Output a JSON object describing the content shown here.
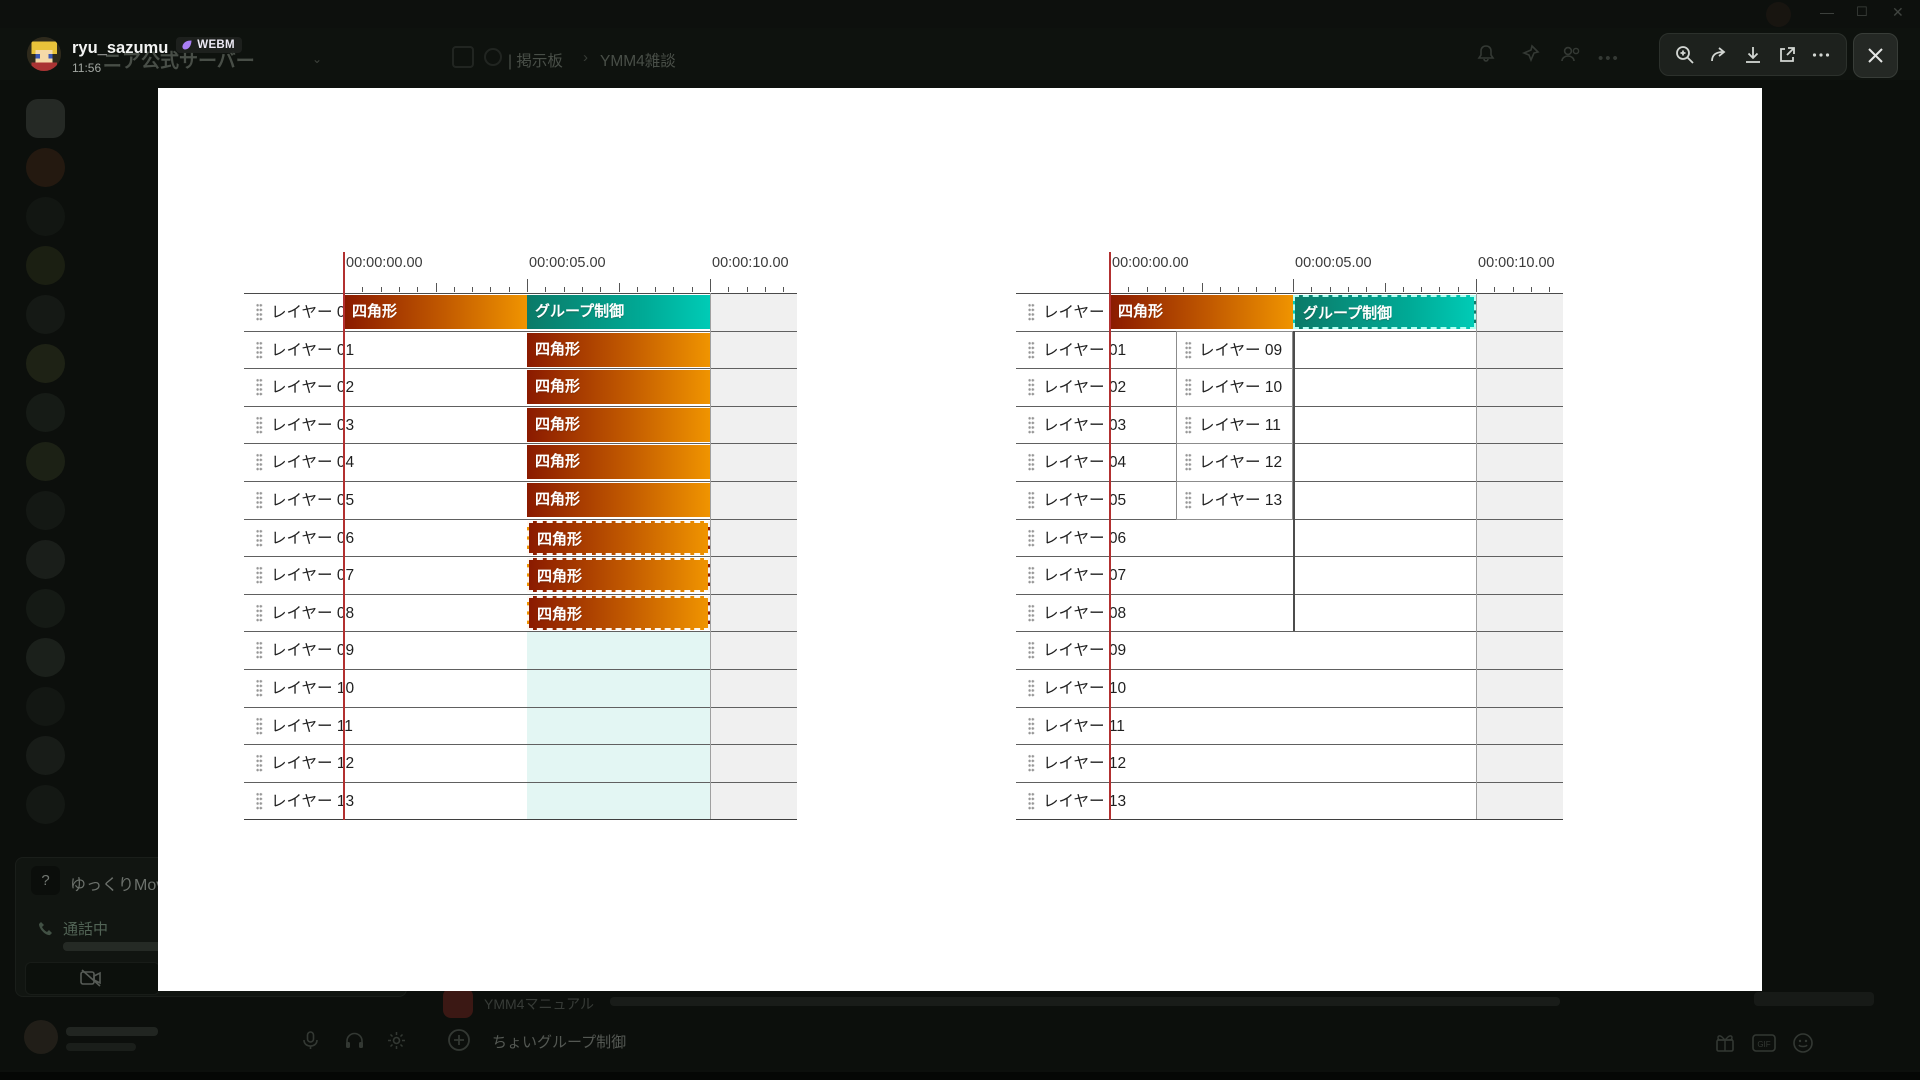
{
  "lightbox": {
    "author": "ryu_sazumu",
    "badge_label": "WEBM",
    "timestamp": "11:56",
    "toolbar_icons": [
      "zoom-in",
      "forward",
      "download",
      "open-external",
      "more",
      "close"
    ]
  },
  "background": {
    "window_controls": [
      "minimize",
      "maximize",
      "close"
    ],
    "server_title": "ニア公式サーバー",
    "channel_name": "| 掲示板",
    "channel_separator": "›",
    "channel_topic": "YMM4雑談",
    "activity_title": "ゆっくりMov",
    "call_status": "通話中",
    "message_prefix": "YMM4マニュアル",
    "composer_draft": "ちょいグループ制御"
  },
  "timelines": {
    "ruler_labels": [
      "00:00:00.00",
      "00:00:05.00",
      "00:00:10.00"
    ],
    "clip_labels": {
      "rect": "四角形",
      "group": "グループ制御"
    },
    "layers": [
      "レイヤー 00",
      "レイヤー 01",
      "レイヤー 02",
      "レイヤー 03",
      "レイヤー 04",
      "レイヤー 05",
      "レイヤー 06",
      "レイヤー 07",
      "レイヤー 08",
      "レイヤー 09",
      "レイヤー 10",
      "レイヤー 11",
      "レイヤー 12",
      "レイヤー 13"
    ],
    "left": {
      "clips": [
        {
          "row": 0,
          "from": 0,
          "to": 5,
          "kind": "rect",
          "selected": false
        },
        {
          "row": 0,
          "from": 5,
          "to": 10,
          "kind": "group",
          "selected": false
        },
        {
          "row": 1,
          "from": 5,
          "to": 10,
          "kind": "rect",
          "selected": false
        },
        {
          "row": 2,
          "from": 5,
          "to": 10,
          "kind": "rect",
          "selected": false
        },
        {
          "row": 3,
          "from": 5,
          "to": 10,
          "kind": "rect",
          "selected": false
        },
        {
          "row": 4,
          "from": 5,
          "to": 10,
          "kind": "rect",
          "selected": false
        },
        {
          "row": 5,
          "from": 5,
          "to": 10,
          "kind": "rect",
          "selected": false
        },
        {
          "row": 6,
          "from": 5,
          "to": 10,
          "kind": "rect",
          "selected": true
        },
        {
          "row": 7,
          "from": 5,
          "to": 10,
          "kind": "rect",
          "selected": true
        },
        {
          "row": 8,
          "from": 5,
          "to": 10,
          "kind": "rect",
          "selected": true
        }
      ],
      "selection_region": {
        "row_start": 9,
        "row_end": 13,
        "from": 5,
        "to": 10
      }
    },
    "right": {
      "clips": [
        {
          "row": 0,
          "from": 0,
          "to": 5,
          "kind": "rect",
          "selected": false
        },
        {
          "row": 0,
          "from": 5,
          "to": 10,
          "kind": "group",
          "selected": true
        }
      ],
      "nested_layers": [
        {
          "row": 1,
          "label": "レイヤー 09"
        },
        {
          "row": 2,
          "label": "レイヤー 10"
        },
        {
          "row": 3,
          "label": "レイヤー 11"
        },
        {
          "row": 4,
          "label": "レイヤー 12"
        },
        {
          "row": 5,
          "label": "レイヤー 13"
        }
      ],
      "group_boundary_line": {
        "at_sec": 5,
        "row_start": 1,
        "row_end": 8
      }
    }
  },
  "colors": {
    "clip_orange_dark": "#8a1a00",
    "clip_orange_light": "#f09400",
    "clip_teal_dark": "#0b7a68",
    "clip_teal_light": "#00cbb6",
    "playhead_red": "#b23030",
    "selection_fill": "#e3f6f3",
    "empty_fill": "#f0f0f0",
    "badge_icon_purple": "#a97ef5"
  }
}
